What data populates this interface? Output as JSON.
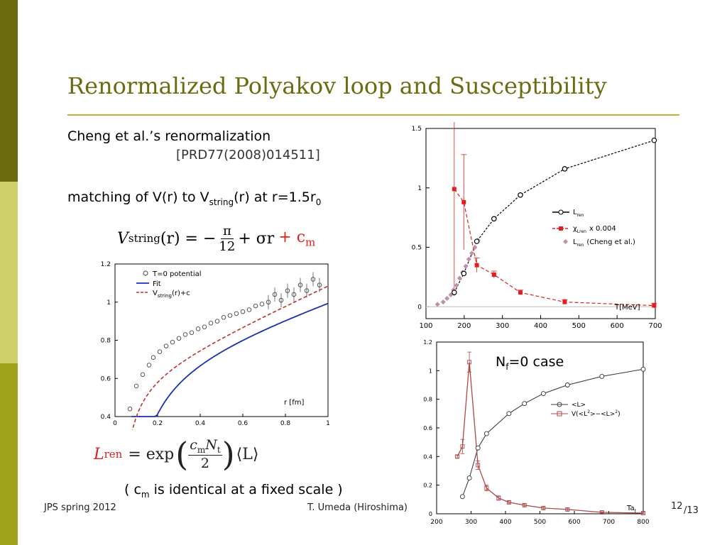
{
  "slide": {
    "title": "Renormalized Polyakov loop and Susceptibility",
    "line1": "Cheng et al.’s renormalization",
    "reference": "[PRD77(2008)014511]",
    "matching": {
      "a": "matching of V(r) to V",
      "sub": "string",
      "b": "(r) at r=1.5r",
      "sub0": "0"
    },
    "note": {
      "a": "( c",
      "sub": "m",
      "b": " is identical at a fixed scale )"
    },
    "nf_case": {
      "a": "N",
      "sub": "f",
      "b": "=0 case"
    },
    "eq_vstring": {
      "lhs": "V",
      "lhs_sub": "string",
      "rest": "(r) = −",
      "frac_num": "π",
      "frac_den": "12",
      "plus": "+ σr",
      "red": "+ c",
      "red_sub": "m"
    },
    "eq_lren": {
      "L": "L",
      "sub": "ren",
      "eq": "= exp",
      "num": "c",
      "num_sub": "m",
      "num_N": "N",
      "num_t": "t",
      "den": "2",
      "tail": "⟨L⟩"
    }
  },
  "footer": {
    "left": "JPS spring 2012",
    "center": "T. Umeda (Hiroshima)",
    "page": "12",
    "total": "/13"
  },
  "colors": {
    "title": "#6b6b12",
    "rule": "#b8b836",
    "red": "#e02020",
    "blue": "#1a2fb0",
    "darkred": "#b04848"
  },
  "chart_data": [
    {
      "type": "line",
      "name": "Polyakov loop vs T",
      "xlabel": "T[MeV]",
      "xlim": [
        100,
        700
      ],
      "ylim": [
        -0.1,
        1.5
      ],
      "xticks": [
        "100",
        "200",
        "300",
        "400",
        "500",
        "600",
        "700"
      ],
      "yticks": [
        "0",
        "0.5",
        "1",
        "1.5"
      ],
      "series": [
        {
          "name": "L",
          "name_sub": "ren",
          "x": [
            174,
            199,
            233,
            278,
            347,
            463,
            697
          ],
          "y": [
            0.12,
            0.28,
            0.55,
            0.74,
            0.94,
            1.16,
            1.4
          ]
        },
        {
          "name": "χ",
          "name_sub": "Lren",
          "name_suffix": "x 0.004",
          "x": [
            174,
            199,
            233,
            278,
            347,
            463,
            697
          ],
          "y": [
            0.99,
            0.88,
            0.35,
            0.27,
            0.12,
            0.04,
            0.01
          ]
        },
        {
          "name": "L",
          "name_sub": "ren",
          "name_suffix": "(Cheng et al.)",
          "x": [
            130,
            145,
            155,
            165,
            172,
            180,
            188,
            196,
            204,
            212,
            220,
            228,
            236
          ],
          "y": [
            0.02,
            0.04,
            0.07,
            0.1,
            0.14,
            0.18,
            0.24,
            0.29,
            0.34,
            0.4,
            0.45,
            0.5,
            0.56
          ]
        }
      ]
    },
    {
      "type": "line",
      "name": "V(r) fit",
      "xlabel": "r [fm]",
      "xlim": [
        0,
        1
      ],
      "ylim": [
        0.4,
        1.2
      ],
      "xticks": [
        "0",
        "0.2",
        "0.4",
        "0.6",
        "0.8",
        "1"
      ],
      "yticks": [
        "0.4",
        "0.6",
        "0.8",
        "1",
        "1.2"
      ],
      "legend": [
        "T=0 potential",
        "Fit",
        "V",
        "string",
        "(r)+c"
      ],
      "series": [
        {
          "name": "T=0 potential",
          "x": [
            0.07,
            0.1,
            0.13,
            0.16,
            0.18,
            0.21,
            0.24,
            0.27,
            0.3,
            0.33,
            0.36,
            0.39,
            0.42,
            0.45,
            0.48,
            0.51,
            0.54,
            0.57,
            0.6,
            0.63,
            0.66,
            0.69,
            0.72,
            0.75,
            0.78,
            0.81,
            0.84,
            0.87,
            0.9,
            0.93,
            0.96
          ],
          "y": [
            0.44,
            0.56,
            0.62,
            0.67,
            0.71,
            0.74,
            0.77,
            0.79,
            0.81,
            0.83,
            0.84,
            0.86,
            0.87,
            0.89,
            0.9,
            0.92,
            0.93,
            0.94,
            0.95,
            0.96,
            0.98,
            0.99,
            1.0,
            1.04,
            1.01,
            1.06,
            1.04,
            1.09,
            1.06,
            1.12,
            1.09
          ]
        }
      ]
    },
    {
      "type": "line",
      "name": "Nf=0 Polyakov loop",
      "xlabel": "Ta",
      "xlabel_sub": "t",
      "xlim": [
        200,
        800
      ],
      "ylim": [
        0,
        1.2
      ],
      "xticks": [
        "200",
        "300",
        "400",
        "500",
        "600",
        "700",
        "800"
      ],
      "yticks": [
        "0",
        "0.2",
        "0.4",
        "0.6",
        "0.8",
        "1",
        "1.2"
      ],
      "series": [
        {
          "name": "<L>",
          "x": [
            275,
            295,
            320,
            345,
            410,
            455,
            510,
            580,
            680,
            800
          ],
          "y": [
            0.12,
            0.25,
            0.46,
            0.56,
            0.7,
            0.77,
            0.84,
            0.9,
            0.96,
            1.01
          ]
        },
        {
          "name": "V(<L",
          "name_sup": "2",
          "name_mid": ">−<L>",
          "name_sup2": "2",
          "name_end": ")",
          "x": [
            260,
            275,
            295,
            320,
            345,
            380,
            410,
            455,
            510,
            580,
            680,
            800
          ],
          "y": [
            0.4,
            0.47,
            1.06,
            0.34,
            0.18,
            0.11,
            0.08,
            0.06,
            0.04,
            0.03,
            0.01,
            0.005
          ]
        }
      ]
    }
  ]
}
